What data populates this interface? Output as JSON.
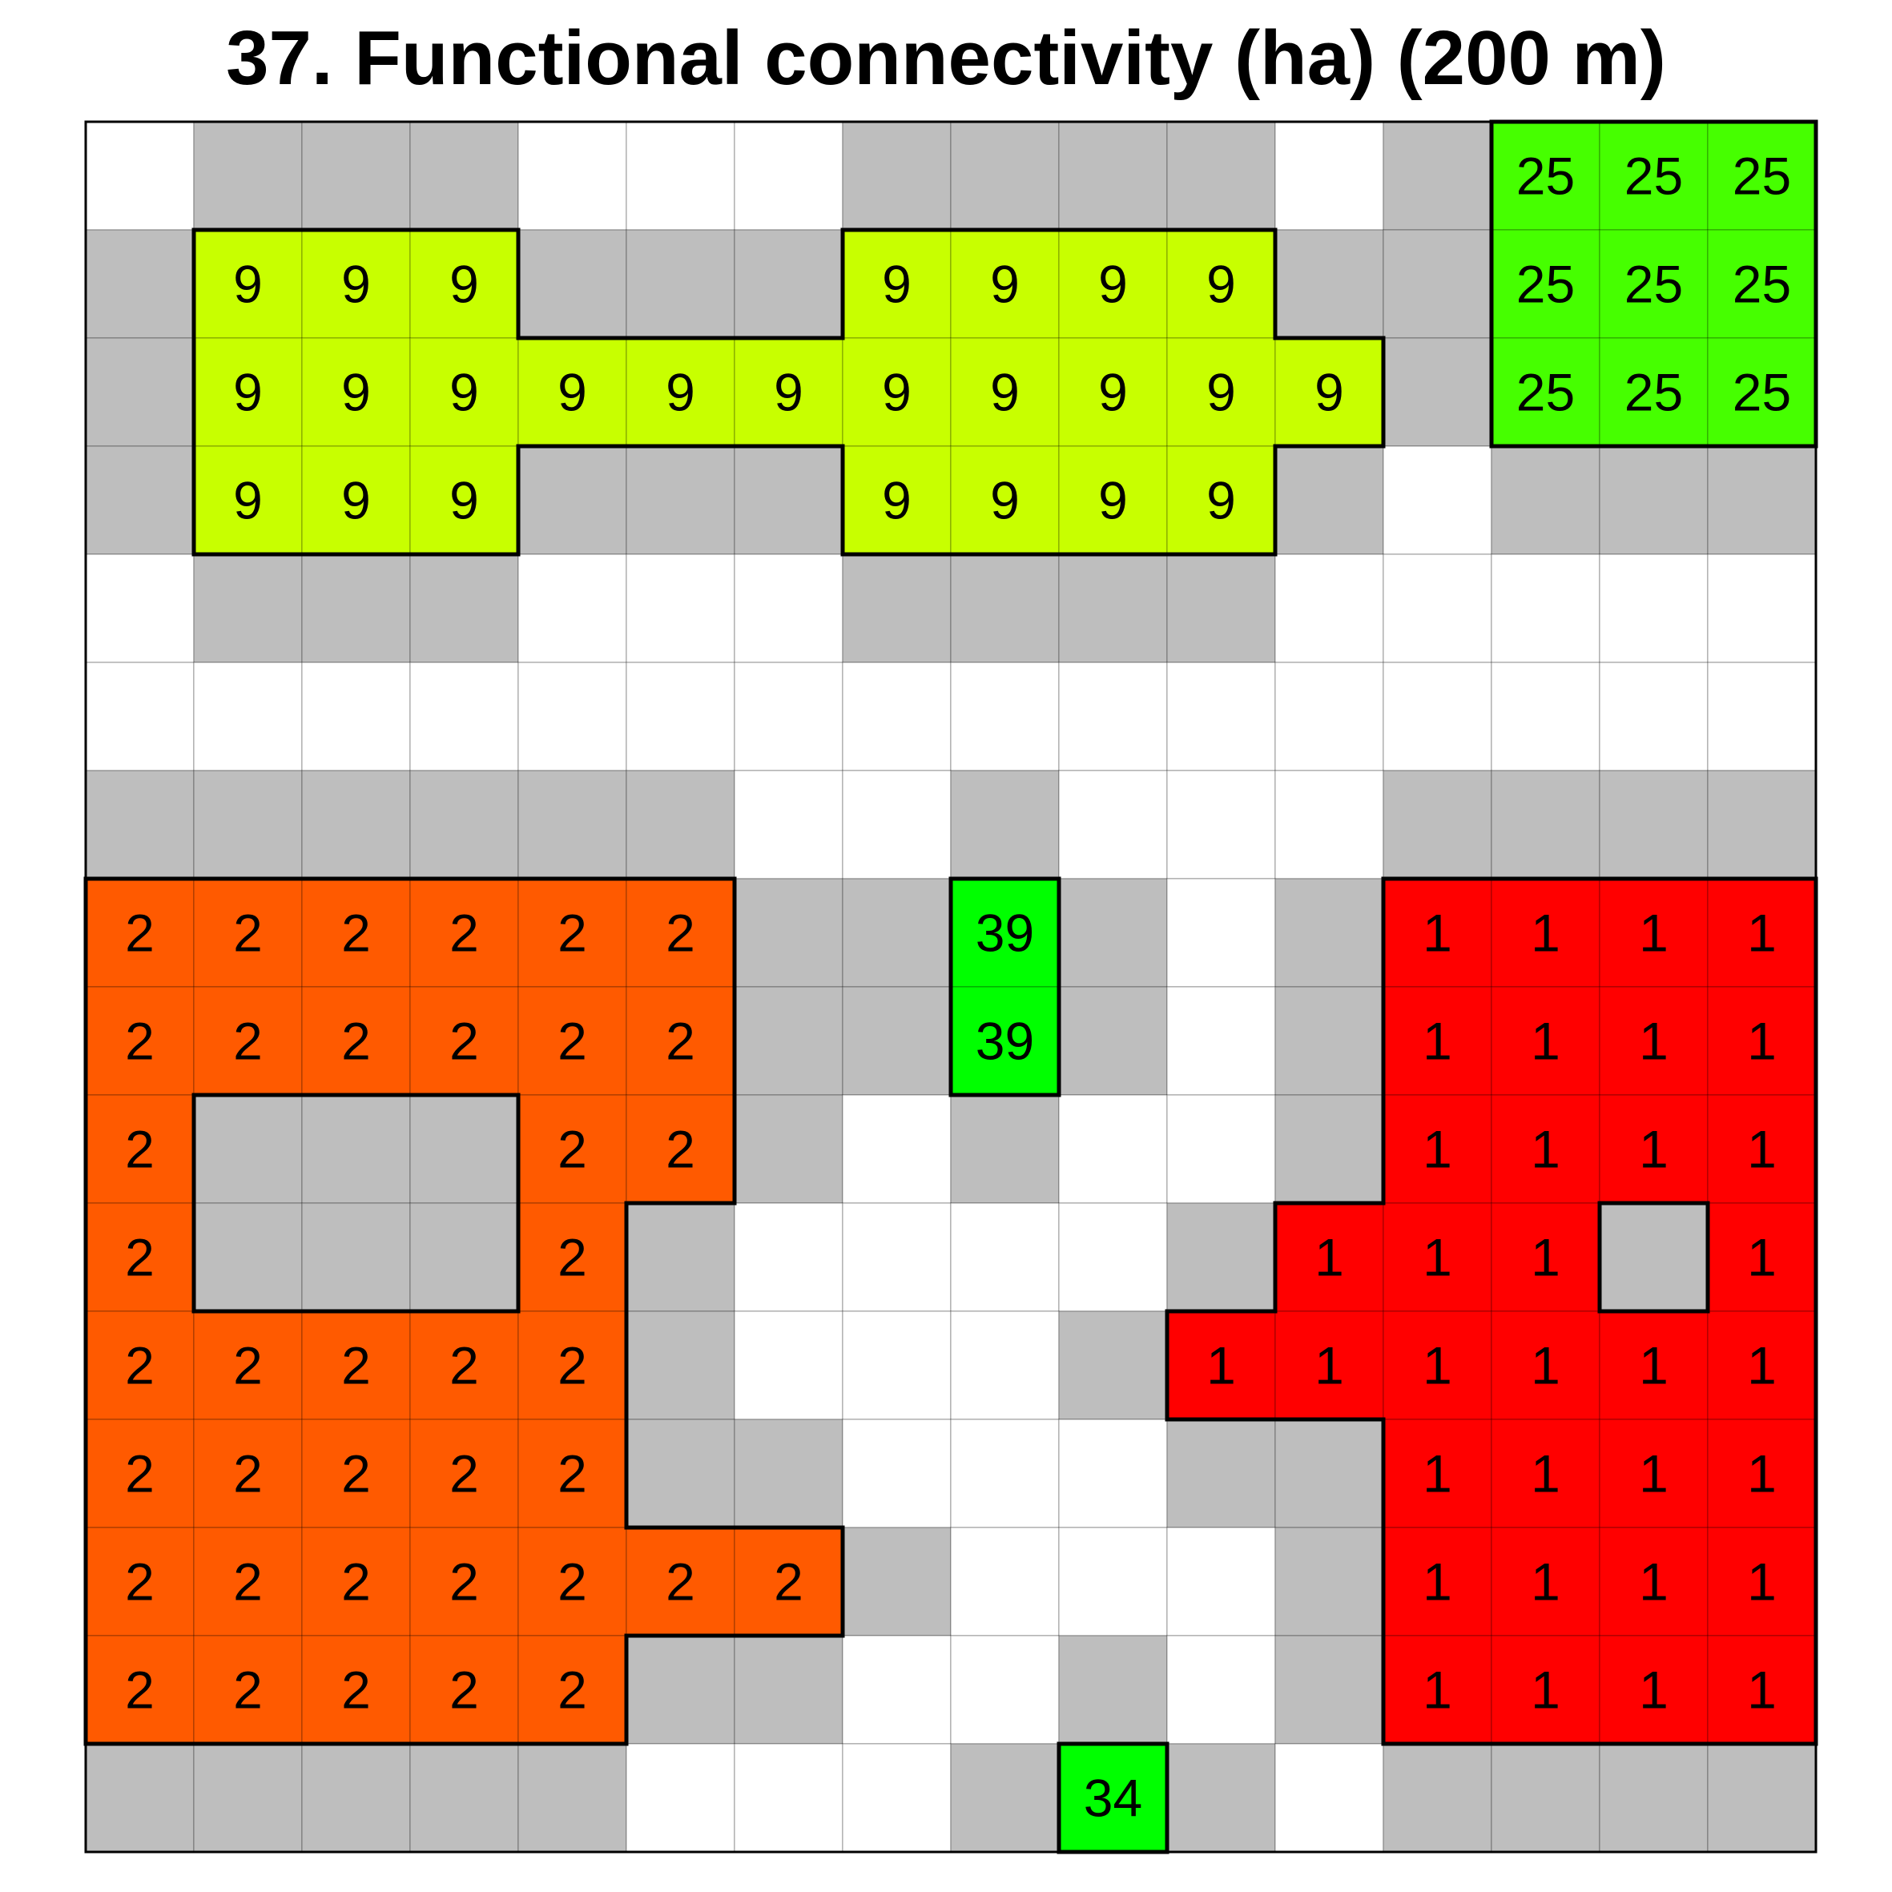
{
  "title": "37. Functional connectivity (ha) (200 m)",
  "colors": {
    "white": "#ffffff",
    "gray": "#bebebe",
    "orange": "#ff5a00",
    "red": "#ff0000",
    "yellowgreen": "#c8ff00",
    "green_25": "#46ff00",
    "green_39": "#00ff00",
    "green_34": "#00ff00"
  },
  "grid": {
    "rows": 16,
    "cols": 16,
    "legend": "W=white, G=gray, 9/25/39/34/2/1 = patch connectivity value",
    "cells": [
      [
        "W",
        "G",
        "G",
        "G",
        "W",
        "W",
        "W",
        "G",
        "G",
        "G",
        "G",
        "W",
        "G",
        "25",
        "25",
        "25"
      ],
      [
        "G",
        "9",
        "9",
        "9",
        "G",
        "G",
        "G",
        "9",
        "9",
        "9",
        "9",
        "G",
        "G",
        "25",
        "25",
        "25"
      ],
      [
        "G",
        "9",
        "9",
        "9",
        "9",
        "9",
        "9",
        "9",
        "9",
        "9",
        "9",
        "9",
        "G",
        "25",
        "25",
        "25"
      ],
      [
        "G",
        "9",
        "9",
        "9",
        "G",
        "G",
        "G",
        "9",
        "9",
        "9",
        "9",
        "G",
        "W",
        "G",
        "G",
        "G"
      ],
      [
        "W",
        "G",
        "G",
        "G",
        "W",
        "W",
        "W",
        "G",
        "G",
        "G",
        "G",
        "W",
        "W",
        "W",
        "W",
        "W"
      ],
      [
        "W",
        "W",
        "W",
        "W",
        "W",
        "W",
        "W",
        "W",
        "W",
        "W",
        "W",
        "W",
        "W",
        "W",
        "W",
        "W"
      ],
      [
        "G",
        "G",
        "G",
        "G",
        "G",
        "G",
        "W",
        "W",
        "G",
        "W",
        "W",
        "W",
        "G",
        "G",
        "G",
        "G"
      ],
      [
        "2",
        "2",
        "2",
        "2",
        "2",
        "2",
        "G",
        "G",
        "39",
        "G",
        "W",
        "G",
        "1",
        "1",
        "1",
        "1"
      ],
      [
        "2",
        "2",
        "2",
        "2",
        "2",
        "2",
        "G",
        "G",
        "39",
        "G",
        "W",
        "G",
        "1",
        "1",
        "1",
        "1"
      ],
      [
        "2",
        "G",
        "G",
        "G",
        "2",
        "2",
        "G",
        "W",
        "G",
        "W",
        "W",
        "G",
        "1",
        "1",
        "1",
        "1"
      ],
      [
        "2",
        "G",
        "G",
        "G",
        "2",
        "G",
        "W",
        "W",
        "W",
        "W",
        "G",
        "1",
        "1",
        "1",
        "G",
        "1"
      ],
      [
        "2",
        "2",
        "2",
        "2",
        "2",
        "G",
        "W",
        "W",
        "W",
        "G",
        "1",
        "1",
        "1",
        "1",
        "1",
        "1"
      ],
      [
        "2",
        "2",
        "2",
        "2",
        "2",
        "G",
        "G",
        "W",
        "W",
        "W",
        "G",
        "G",
        "1",
        "1",
        "1",
        "1"
      ],
      [
        "2",
        "2",
        "2",
        "2",
        "2",
        "2",
        "2",
        "G",
        "W",
        "W",
        "W",
        "G",
        "1",
        "1",
        "1",
        "1"
      ],
      [
        "2",
        "2",
        "2",
        "2",
        "2",
        "G",
        "G",
        "W",
        "W",
        "G",
        "W",
        "G",
        "1",
        "1",
        "1",
        "1"
      ],
      [
        "G",
        "G",
        "G",
        "G",
        "G",
        "W",
        "W",
        "W",
        "G",
        "34",
        "G",
        "W",
        "G",
        "G",
        "G",
        "G"
      ]
    ]
  }
}
